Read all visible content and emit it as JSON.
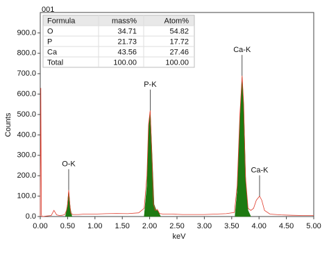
{
  "chart_data": {
    "type": "spectrum",
    "title": "001",
    "xlabel": "keV",
    "ylabel": "Counts",
    "xlim": [
      0,
      5
    ],
    "ylim": [
      0,
      1000
    ],
    "xticks": [
      {
        "value": 0,
        "label": "0.00"
      },
      {
        "value": 0.5,
        "label": "0.50"
      },
      {
        "value": 1,
        "label": "1.00"
      },
      {
        "value": 1.5,
        "label": "1.50"
      },
      {
        "value": 2,
        "label": "2.00"
      },
      {
        "value": 2.5,
        "label": "2.50"
      },
      {
        "value": 3,
        "label": "3.00"
      },
      {
        "value": 3.5,
        "label": "3.50"
      },
      {
        "value": 4,
        "label": "4.00"
      },
      {
        "value": 4.5,
        "label": "4.50"
      },
      {
        "value": 5,
        "label": "5.00"
      }
    ],
    "yticks": [
      {
        "value": 0,
        "label": "0.0"
      },
      {
        "value": 100,
        "label": "100.0"
      },
      {
        "value": 200,
        "label": "200.0"
      },
      {
        "value": 300,
        "label": "300.0"
      },
      {
        "value": 400,
        "label": "400.0"
      },
      {
        "value": 500,
        "label": "500.0"
      },
      {
        "value": 600,
        "label": "600.0"
      },
      {
        "value": 700,
        "label": "700.0"
      },
      {
        "value": 800,
        "label": "800.0"
      },
      {
        "value": 900,
        "label": "900.0"
      }
    ],
    "series": [
      {
        "color": "#1e7a12",
        "fill": true,
        "x": [
          0.46,
          0.49,
          0.52,
          0.55,
          0.58
        ],
        "values": [
          0,
          40,
          130,
          40,
          0
        ]
      },
      {
        "color": "#1e7a12",
        "fill": true,
        "x": [
          1.9,
          1.95,
          1.98,
          2.01,
          2.04,
          2.08,
          2.12,
          2.15,
          2.2
        ],
        "values": [
          0,
          150,
          430,
          520,
          330,
          60,
          30,
          30,
          0
        ]
      },
      {
        "color": "#1e7a12",
        "fill": true,
        "x": [
          3.56,
          3.6,
          3.65,
          3.69,
          3.72,
          3.76,
          3.8,
          3.85
        ],
        "values": [
          0,
          120,
          480,
          690,
          540,
          150,
          30,
          0
        ]
      },
      {
        "color": "#e03a2a",
        "fill": false,
        "x": [
          0,
          0.01,
          0.02,
          0.03,
          0.05,
          0.1,
          0.2,
          0.25,
          0.3,
          0.35,
          0.4,
          0.45,
          0.48,
          0.5,
          0.52,
          0.54,
          0.56,
          0.6,
          0.7,
          0.8,
          1.0,
          1.2,
          1.4,
          1.6,
          1.8,
          1.9,
          1.95,
          1.98,
          2.01,
          2.04,
          2.07,
          2.1,
          2.14,
          2.18,
          2.25,
          2.4,
          2.6,
          2.8,
          3.0,
          3.2,
          3.4,
          3.55,
          3.6,
          3.65,
          3.69,
          3.72,
          3.75,
          3.8,
          3.85,
          3.9,
          3.95,
          4.01,
          4.05,
          4.1,
          4.2,
          4.4,
          4.6,
          4.8,
          5.0
        ],
        "values": [
          0,
          630,
          10,
          0,
          0,
          2,
          5,
          30,
          8,
          5,
          6,
          10,
          30,
          60,
          130,
          60,
          15,
          10,
          10,
          12,
          12,
          14,
          15,
          14,
          18,
          40,
          200,
          450,
          520,
          300,
          60,
          30,
          35,
          15,
          12,
          12,
          10,
          10,
          10,
          12,
          14,
          20,
          150,
          500,
          690,
          550,
          200,
          40,
          30,
          40,
          80,
          100,
          80,
          30,
          12,
          8,
          6,
          5,
          5
        ]
      }
    ],
    "annotations": [
      {
        "text": "O-K",
        "x": 0.52,
        "y": 130
      },
      {
        "text": "P-K",
        "x": 2.01,
        "y": 520
      },
      {
        "text": "Ca-K",
        "x": 3.69,
        "y": 690
      },
      {
        "text": "Ca-K",
        "x": 4.01,
        "y": 100
      }
    ],
    "table": {
      "header": [
        "Formula",
        "mass%",
        "Atom%"
      ],
      "rows": [
        [
          "O",
          "34.71",
          "54.82"
        ],
        [
          "P",
          "21.73",
          "17.72"
        ],
        [
          "Ca",
          "43.56",
          "27.46"
        ],
        [
          "Total",
          "100.00",
          "100.00"
        ]
      ]
    }
  }
}
